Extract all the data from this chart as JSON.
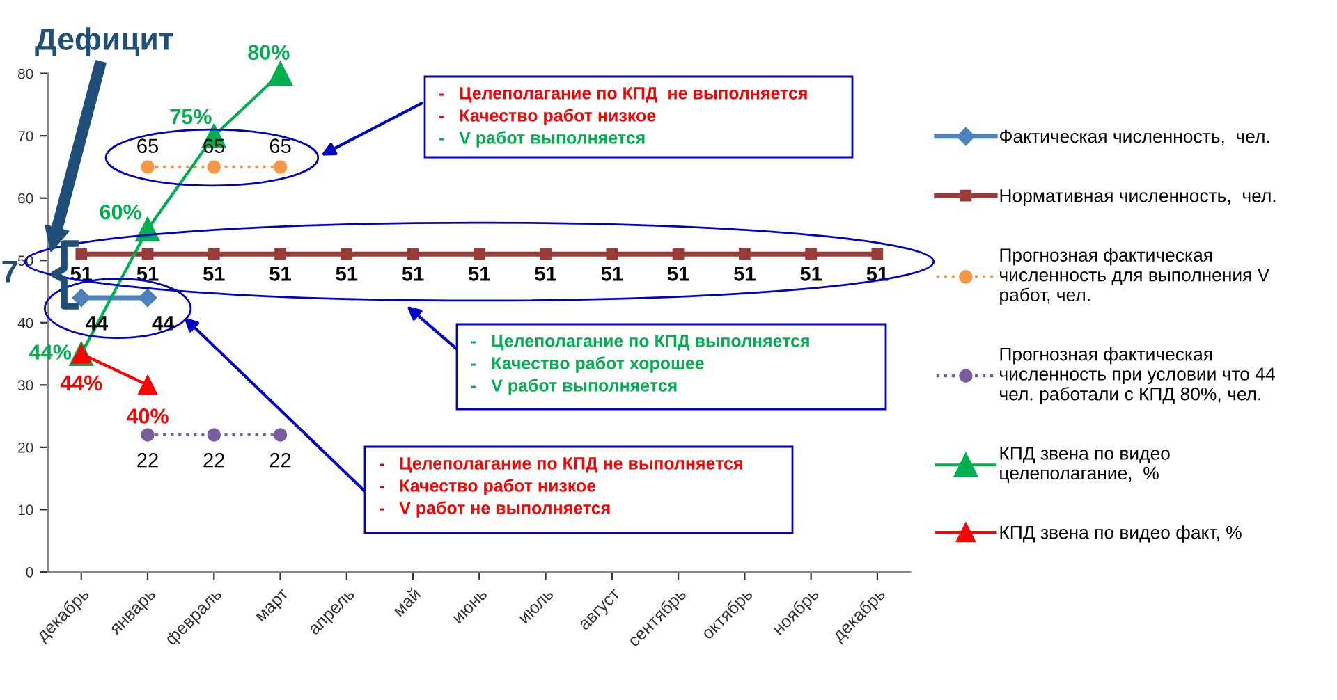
{
  "chart_data": {
    "type": "line",
    "categories": [
      "декабрь",
      "январь",
      "февраль",
      "март",
      "апрель",
      "май",
      "июнь",
      "июль",
      "август",
      "сентябрь",
      "октябрь",
      "ноябрь",
      "декабрь"
    ],
    "ylim": [
      0,
      80
    ],
    "yticks": [
      0,
      10,
      20,
      30,
      40,
      50,
      60,
      70,
      80
    ],
    "grid": false,
    "legend": "right",
    "series": [
      {
        "name": "Фактическая численность,  чел.",
        "color": "#4f81bd",
        "marker": "diamond",
        "line_style": "solid",
        "values": [
          44,
          44,
          null,
          null,
          null,
          null,
          null,
          null,
          null,
          null,
          null,
          null,
          null
        ],
        "value_labels": [
          "44",
          "44",
          null,
          null,
          null,
          null,
          null,
          null,
          null,
          null,
          null,
          null,
          null
        ]
      },
      {
        "name": "Нормативная численность,  чел.",
        "color": "#9b3b38",
        "marker": "square",
        "line_style": "solid",
        "values": [
          51,
          51,
          51,
          51,
          51,
          51,
          51,
          51,
          51,
          51,
          51,
          51,
          51
        ],
        "value_labels": [
          "51",
          "51",
          "51",
          "51",
          "51",
          "51",
          "51",
          "51",
          "51",
          "51",
          "51",
          "51",
          "51"
        ]
      },
      {
        "name": "Прогнозная фактическая численность для выполнения V работ, чел.",
        "color": "#f79646",
        "marker": "circle",
        "line_style": "dotted",
        "values": [
          null,
          65,
          65,
          65,
          null,
          null,
          null,
          null,
          null,
          null,
          null,
          null,
          null
        ],
        "value_labels": [
          null,
          "65",
          "65",
          "65",
          null,
          null,
          null,
          null,
          null,
          null,
          null,
          null,
          null
        ]
      },
      {
        "name": "Прогнозная фактическая численность при условии что 44 чел. работали с КПД 80%, чел.",
        "color": "#7a5d9c",
        "marker": "circle",
        "line_style": "dotted",
        "values": [
          null,
          22,
          22,
          22,
          null,
          null,
          null,
          null,
          null,
          null,
          null,
          null,
          null
        ],
        "value_labels": [
          null,
          "22",
          "22",
          "22",
          null,
          null,
          null,
          null,
          null,
          null,
          null,
          null,
          null
        ]
      },
      {
        "name": "КПД звена по видео целеполагание,  %",
        "color": "#00b050",
        "marker": "triangle",
        "line_style": "solid",
        "values": [
          35,
          55,
          70,
          80,
          null,
          null,
          null,
          null,
          null,
          null,
          null,
          null,
          null
        ]
      },
      {
        "name": "КПД звена по видео факт, %",
        "color": "#ff0000",
        "marker": "triangle",
        "line_style": "solid",
        "values": [
          35,
          30,
          null,
          null,
          null,
          null,
          null,
          null,
          null,
          null,
          null,
          null,
          null
        ]
      }
    ],
    "annotations": [
      "Дефицит",
      "7",
      "-   Целеполагание по КПД  не выполняется",
      "-   Качество работ низкое",
      "-   V работ выполняется",
      "-   Целеполагание по КПД выполняется",
      "-   Качество работ хорошее",
      "-   V работ выполняется",
      "-   Целеполагание по КПД не выполняется",
      "-   Качество работ низкое",
      "-   V работ не выполняется",
      {
        "text": "44%",
        "x": "декабрь",
        "y": 35
      },
      {
        "text": "60%",
        "x": "январь",
        "y": 55
      },
      {
        "text": "75%",
        "x": "февраль",
        "y": 70
      },
      {
        "text": "80%",
        "x": "март",
        "y": 80
      },
      {
        "text": "44%",
        "x": "декабрь",
        "y": 35
      },
      {
        "text": "40%",
        "x": "январь",
        "y": 30
      }
    ]
  }
}
